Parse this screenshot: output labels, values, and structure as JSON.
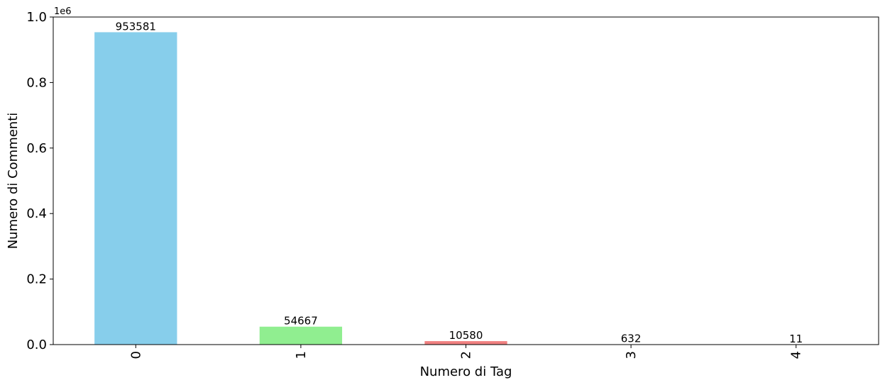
{
  "chart_data": {
    "type": "bar",
    "categories": [
      "0",
      "1",
      "2",
      "3",
      "4"
    ],
    "values": [
      953581,
      54667,
      10580,
      632,
      11
    ],
    "data_labels": [
      "953581",
      "54667",
      "10580",
      "632",
      "11"
    ],
    "colors": [
      "#87ceeb",
      "#90ee90",
      "#f08080",
      "#ffb6c1",
      "#ffa500"
    ],
    "xlabel": "Numero di Tag",
    "ylabel": "Numero di Commenti",
    "y_offset_label": "1e6",
    "ylim": [
      0,
      1000000
    ],
    "yticks": [
      0,
      200000,
      400000,
      600000,
      800000,
      1000000
    ],
    "ytick_labels": [
      "0.0",
      "0.2",
      "0.4",
      "0.6",
      "0.8",
      "1.0"
    ],
    "grid": false,
    "legend": "none"
  }
}
